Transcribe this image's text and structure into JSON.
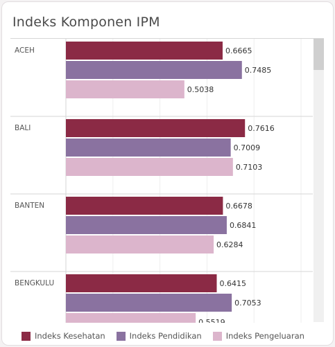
{
  "title": "Indeks Komponen IPM",
  "chart_data": {
    "type": "bar",
    "orientation": "horizontal",
    "title": "Indeks Komponen IPM",
    "categories": [
      "ACEH",
      "BALI",
      "BANTEN",
      "BENGKULU"
    ],
    "series": [
      {
        "name": "Indeks Kesehatan",
        "color": "#8b2a45",
        "values": [
          0.6665,
          0.7616,
          0.6678,
          0.6415
        ]
      },
      {
        "name": "Indeks Pendidikan",
        "color": "#8a72a0",
        "values": [
          0.7485,
          0.7009,
          0.6841,
          0.7053
        ]
      },
      {
        "name": "Indeks Pengeluaran",
        "color": "#dcb5cc",
        "values": [
          0.5038,
          0.7103,
          0.6284,
          0.5519
        ]
      }
    ],
    "value_labels": [
      [
        "0.6665",
        "0.7485",
        "0.5038"
      ],
      [
        "0.7616",
        "0.7009",
        "0.7103"
      ],
      [
        "0.6678",
        "0.6841",
        "0.6284"
      ],
      [
        "0.6415",
        "0.7053",
        "0.5519"
      ]
    ],
    "xlim": [
      0,
      1.05
    ],
    "grid": true,
    "legend_position": "bottom"
  }
}
